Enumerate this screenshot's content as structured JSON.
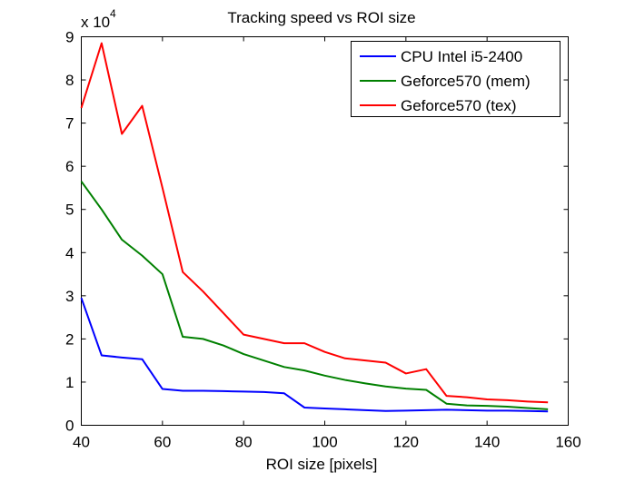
{
  "chart_data": {
    "type": "line",
    "title": "Tracking speed vs ROI size",
    "xlabel": "ROI size [pixels]",
    "ylabel": "",
    "xlim": [
      40,
      160
    ],
    "ylim": [
      0,
      90000
    ],
    "xticks": [
      40,
      60,
      80,
      100,
      120,
      140,
      160
    ],
    "yticks": [
      0,
      1,
      2,
      3,
      4,
      5,
      6,
      7,
      8,
      9
    ],
    "y_exponent_label": "x 10",
    "y_exponent_power": "4",
    "grid": false,
    "legend_position": "top-right",
    "x": [
      40,
      45,
      50,
      55,
      60,
      65,
      70,
      75,
      80,
      85,
      90,
      95,
      100,
      105,
      110,
      115,
      120,
      125,
      130,
      135,
      140,
      145,
      150,
      155
    ],
    "series": [
      {
        "name": "CPU Intel i5-2400",
        "color": "#0000ff",
        "values": [
          29500,
          16200,
          15700,
          15300,
          8400,
          8000,
          8000,
          7900,
          7800,
          7700,
          7400,
          4100,
          3900,
          3700,
          3500,
          3300,
          3400,
          3500,
          3600,
          3500,
          3400,
          3400,
          3300,
          3200
        ]
      },
      {
        "name": "Geforce570 (mem)",
        "color": "#008000",
        "values": [
          56500,
          50000,
          43000,
          39300,
          35000,
          20500,
          20000,
          18500,
          16500,
          15000,
          13500,
          12700,
          11500,
          10500,
          9700,
          9000,
          8500,
          8200,
          5000,
          4600,
          4500,
          4300,
          4000,
          3700
        ]
      },
      {
        "name": "Geforce570 (tex)",
        "color": "#ff0000",
        "values": [
          73500,
          88500,
          67500,
          74000,
          55000,
          35500,
          31000,
          26000,
          21000,
          20000,
          19000,
          19000,
          17000,
          15500,
          15000,
          14500,
          12000,
          13000,
          6800,
          6500,
          6000,
          5800,
          5500,
          5300
        ]
      }
    ]
  }
}
